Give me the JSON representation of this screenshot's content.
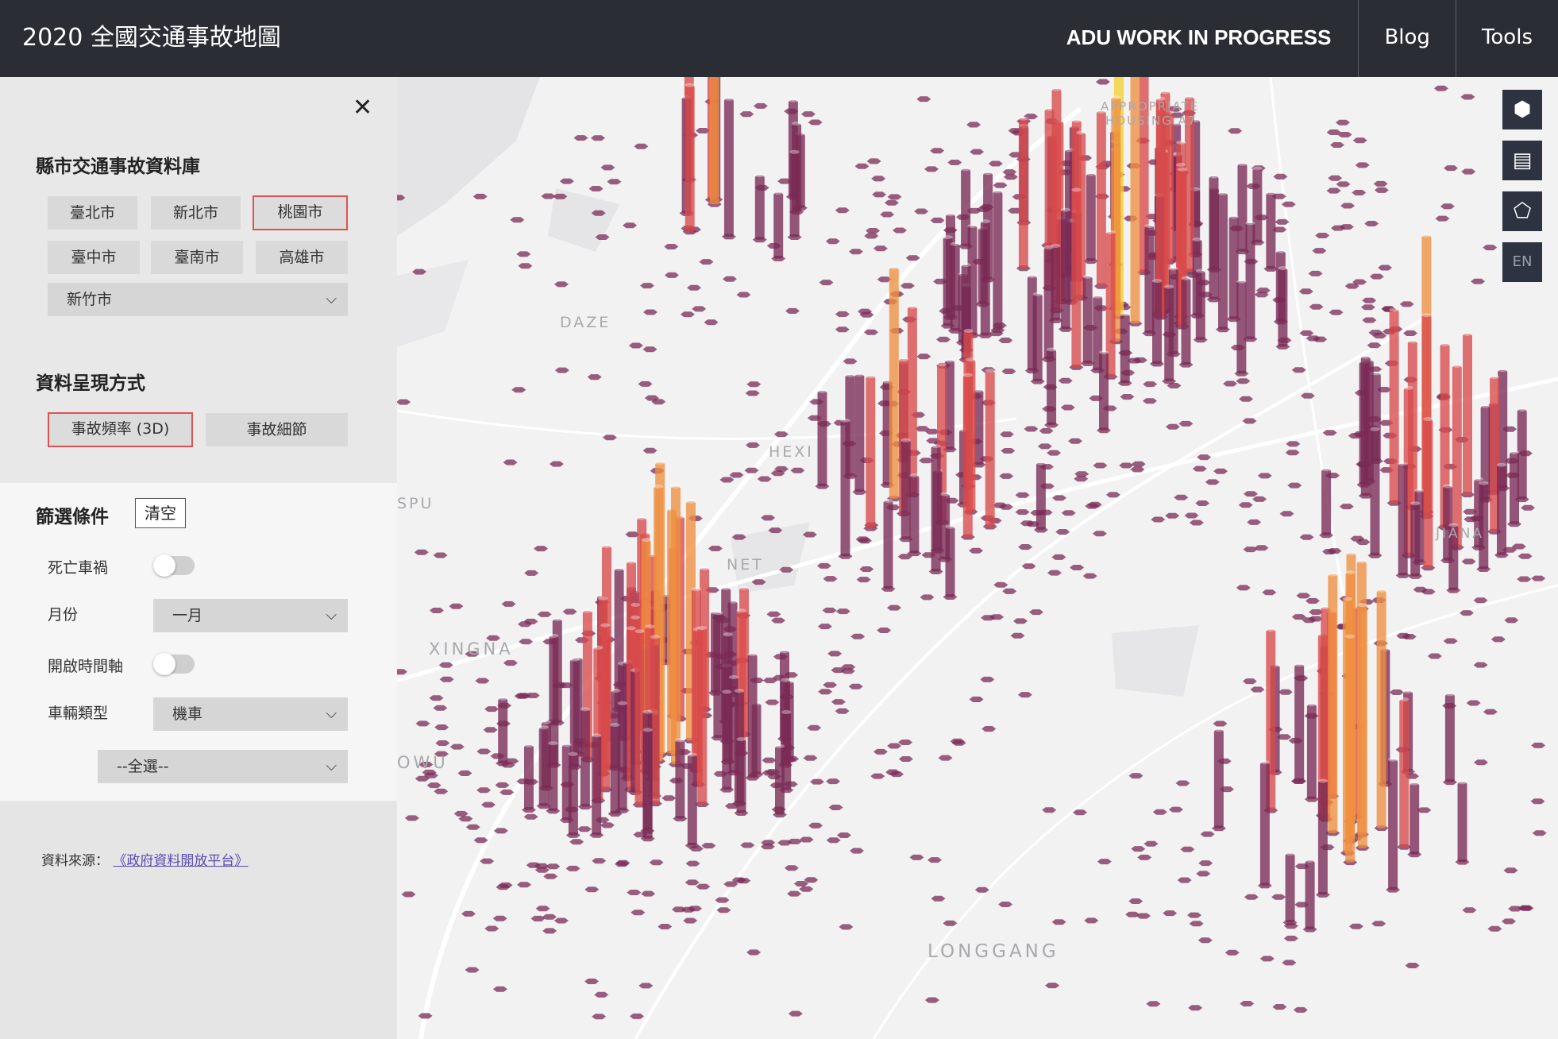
{
  "header": {
    "title": "2020 全國交通事故地圖",
    "brand": "ADU WORK IN PROGRESS",
    "nav": [
      "Blog",
      "Tools"
    ]
  },
  "sidebar": {
    "close_icon": "close-icon",
    "database_heading": "縣市交通事故資料庫",
    "cities": [
      "臺北市",
      "新北市",
      "桃園市",
      "臺中市",
      "臺南市",
      "高雄市"
    ],
    "active_city": "桃園市",
    "other_city": "新竹市",
    "display_heading": "資料呈現方式",
    "display_modes": [
      "事故頻率 (3D)",
      "事故細節"
    ],
    "active_mode": "事故頻率 (3D)",
    "filter_heading": "篩選條件",
    "clear_label": "清空",
    "filters": {
      "fatal_label": "死亡車禍",
      "month_label": "月份",
      "month_value": "一月",
      "timeline_label": "開啟時間軸",
      "vehicle_label": "車輛類型",
      "vehicle_value": "機車",
      "vehicle_sub_value": "--全選--"
    },
    "source_label": "資料來源：",
    "source_link": "《政府資料開放平台》"
  },
  "map": {
    "place_labels": [
      "DAZE",
      "HEXI",
      "SPU",
      "NET",
      "XINGNA",
      "OWU",
      "LONGGANG",
      "JIANA",
      "APPROPRIATE",
      "HOUSING A7"
    ],
    "controls": [
      "3d-view-icon",
      "database-icon",
      "map-shape-icon"
    ],
    "lang_button": "EN",
    "colors": {
      "low": "#7a2a55",
      "mid": "#d84a4a",
      "high": "#f09040",
      "peak": "#f5d030"
    }
  }
}
